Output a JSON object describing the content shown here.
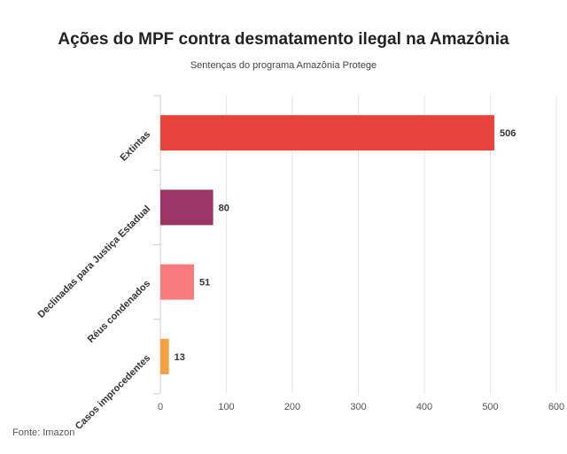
{
  "title": "Ações do MPF contra desmatamento ilegal na Amazônia",
  "subtitle": "Sentenças do programa Amazônia Protege",
  "source": "Fonte: Imazon",
  "chart_data": {
    "type": "bar",
    "orientation": "horizontal",
    "title": "Ações do MPF contra desmatamento ilegal na Amazônia",
    "subtitle": "Sentenças do programa Amazônia Protege",
    "categories": [
      "Extintas",
      "Declinadas para Justiça Estadual",
      "Réus condenados",
      "Casos improcedentes"
    ],
    "values": [
      506,
      80,
      51,
      13
    ],
    "colors": [
      "#e8443c",
      "#9b3566",
      "#f77b7f",
      "#f4a13f"
    ],
    "xlim": [
      0,
      600
    ],
    "xticks": [
      0,
      100,
      200,
      300,
      400,
      500,
      600
    ],
    "grid": true,
    "legend": "none"
  }
}
